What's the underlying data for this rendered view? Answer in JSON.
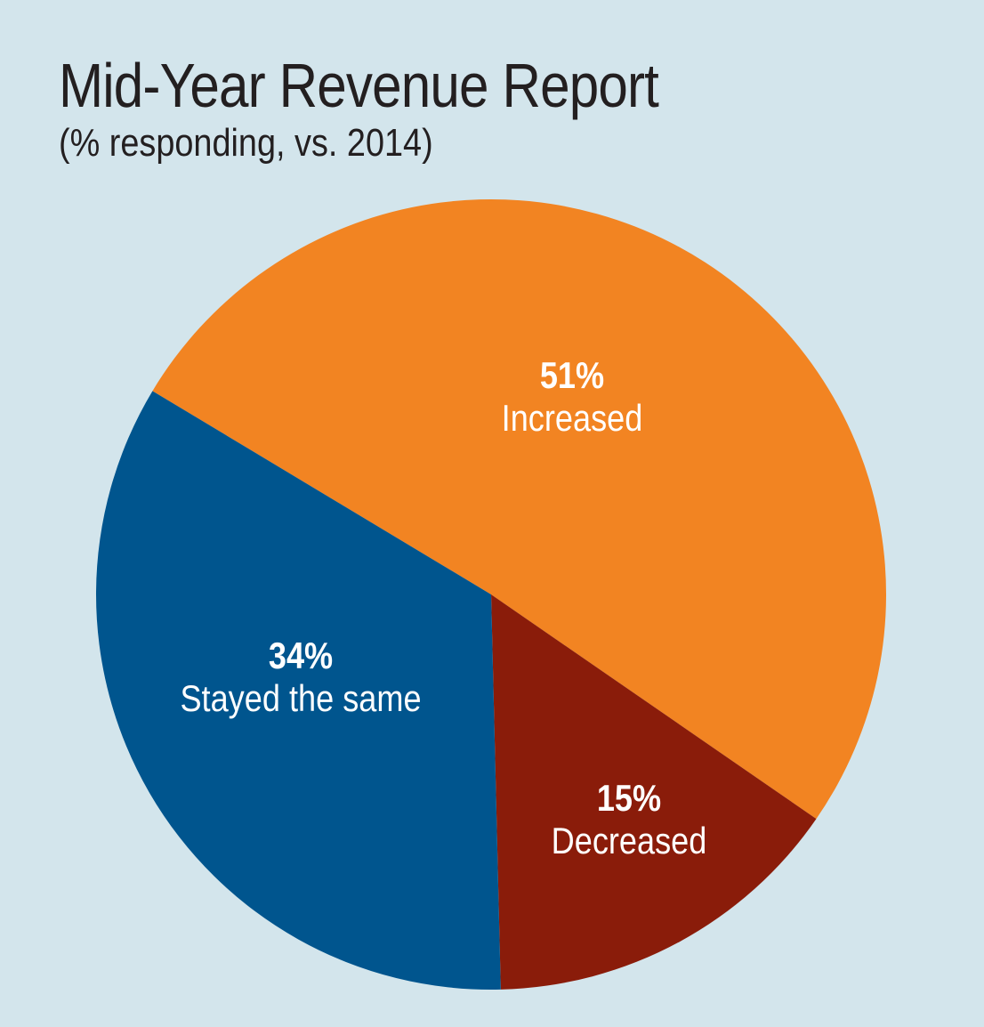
{
  "title": "Mid-Year Revenue Report",
  "subtitle": "(% responding, vs. 2014)",
  "chart_data": {
    "type": "pie",
    "title": "Mid-Year Revenue Report",
    "subtitle": "(% responding, vs. 2014)",
    "slices": [
      {
        "label": "Increased",
        "value": 51,
        "value_label": "51%",
        "color": "#f28422"
      },
      {
        "label": "Decreased",
        "value": 15,
        "value_label": "15%",
        "color": "#8a1c0a"
      },
      {
        "label": "Stayed the same",
        "value": 34,
        "value_label": "34%",
        "color": "#00558e"
      }
    ],
    "background": "#d3e5ec"
  }
}
